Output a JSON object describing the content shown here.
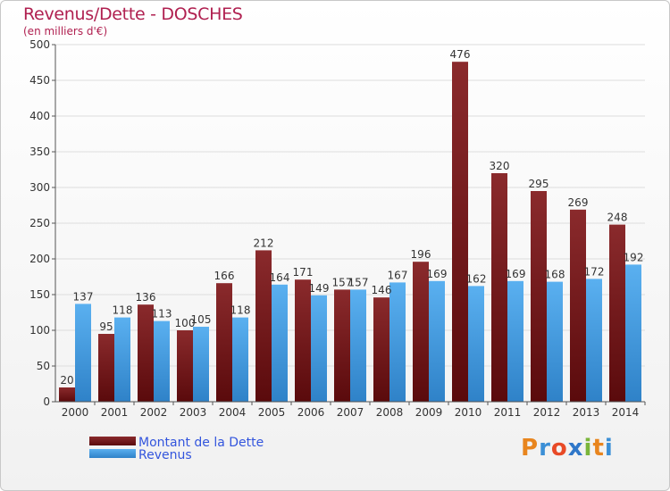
{
  "chart_data": {
    "type": "bar",
    "title": "Revenus/Dette - DOSCHES",
    "subtitle": "(en milliers d'€)",
    "categories": [
      "2000",
      "2001",
      "2002",
      "2003",
      "2004",
      "2005",
      "2006",
      "2007",
      "2008",
      "2009",
      "2010",
      "2011",
      "2012",
      "2013",
      "2014"
    ],
    "series": [
      {
        "name": "Montant de la Dette",
        "color": "#7a1a1c",
        "values": [
          20,
          95,
          136,
          100,
          166,
          212,
          171,
          157,
          146,
          196,
          476,
          320,
          295,
          269,
          248
        ]
      },
      {
        "name": "Revenus",
        "color": "#4aa3e6",
        "values": [
          137,
          118,
          113,
          105,
          118,
          164,
          149,
          157,
          167,
          169,
          162,
          169,
          168,
          172,
          192
        ]
      }
    ],
    "ylim": [
      0,
      500
    ],
    "yticks": [
      0,
      50,
      100,
      150,
      200,
      250,
      300,
      350,
      400,
      450,
      500
    ],
    "grid": true,
    "legend_position": "bottom-left"
  },
  "brand": "Proxiti",
  "colors": {
    "title": "#b02050",
    "legend_text": "#3355dd"
  }
}
